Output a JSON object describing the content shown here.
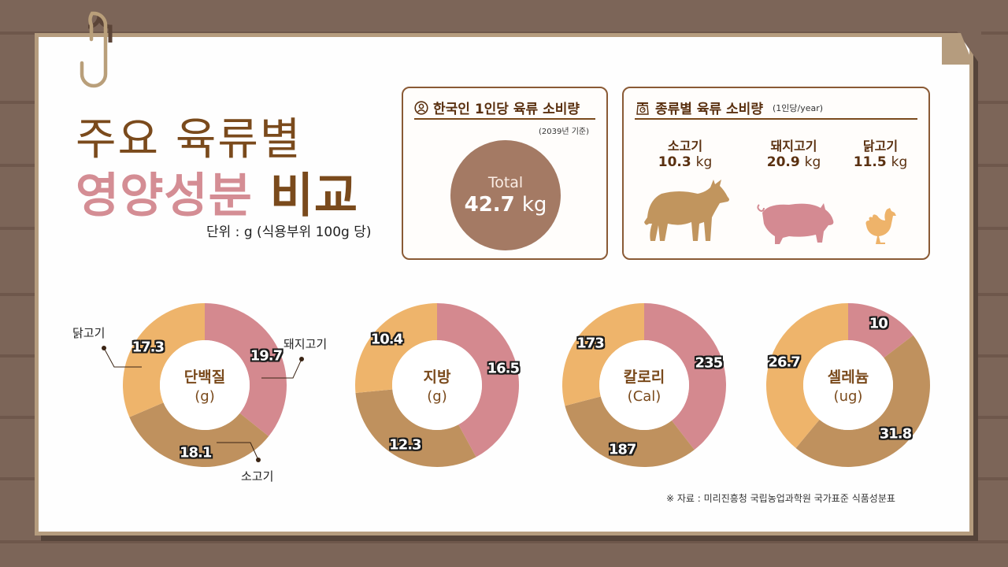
{
  "title": {
    "line1": "주요 육류별",
    "line2_highlight": "영양성분",
    "line2_rest": "비교",
    "unit": "단위 : g (식용부위 100g 당)"
  },
  "per_capita": {
    "icon": "person-circle-icon",
    "heading": "한국인 1인당 육류 소비량",
    "note": "(2039년 기준)",
    "total_label": "Total",
    "total_value": "42.7",
    "total_unit": "kg"
  },
  "by_type": {
    "icon": "scale-icon",
    "heading": "종류별 육류 소비량",
    "subheading": "(1인당/year)",
    "items": [
      {
        "name": "소고기",
        "value": "10.3",
        "unit": "kg",
        "icon": "cow-icon",
        "color": "#c1955e"
      },
      {
        "name": "돼지고기",
        "value": "20.9",
        "unit": "kg",
        "icon": "pig-icon",
        "color": "#d48a92"
      },
      {
        "name": "닭고기",
        "value": "11.5",
        "unit": "kg",
        "icon": "chicken-icon",
        "color": "#eeb36a"
      }
    ]
  },
  "legend_callouts": {
    "chicken": "닭고기",
    "pork": "돼지고기",
    "beef": "소고기"
  },
  "source": "※ 자료 : 미리진흥청 국립농업과학원 국가표준 식품성분표",
  "colors": {
    "pork": "#d4898f",
    "beef": "#bf915e",
    "chicken": "#eeb46b",
    "brown_text": "#7a4a1c",
    "pink_text": "#d48d94",
    "background": "#7c6558",
    "paper_border": "#b59c7e"
  },
  "chart_data": [
    {
      "type": "pie",
      "title": "단백질",
      "unit": "(g)",
      "categories": [
        "돼지고기",
        "소고기",
        "닭고기"
      ],
      "values": [
        19.7,
        18.1,
        17.3
      ],
      "labels": [
        "19.7",
        "18.1",
        "17.3"
      ]
    },
    {
      "type": "pie",
      "title": "지방",
      "unit": "(g)",
      "categories": [
        "돼지고기",
        "소고기",
        "닭고기"
      ],
      "values": [
        16.5,
        12.3,
        10.4
      ],
      "labels": [
        "16.5",
        "12.3",
        "10.4"
      ]
    },
    {
      "type": "pie",
      "title": "칼로리",
      "unit": "(Cal)",
      "categories": [
        "돼지고기",
        "소고기",
        "닭고기"
      ],
      "values": [
        235,
        187,
        173
      ],
      "labels": [
        "235",
        "187",
        "173"
      ]
    },
    {
      "type": "pie",
      "title": "셀레늄",
      "unit": "(ug)",
      "categories": [
        "돼지고기",
        "소고기",
        "닭고기"
      ],
      "values": [
        10,
        31.8,
        26.7
      ],
      "labels": [
        "10",
        "31.8",
        "26.7"
      ]
    }
  ]
}
